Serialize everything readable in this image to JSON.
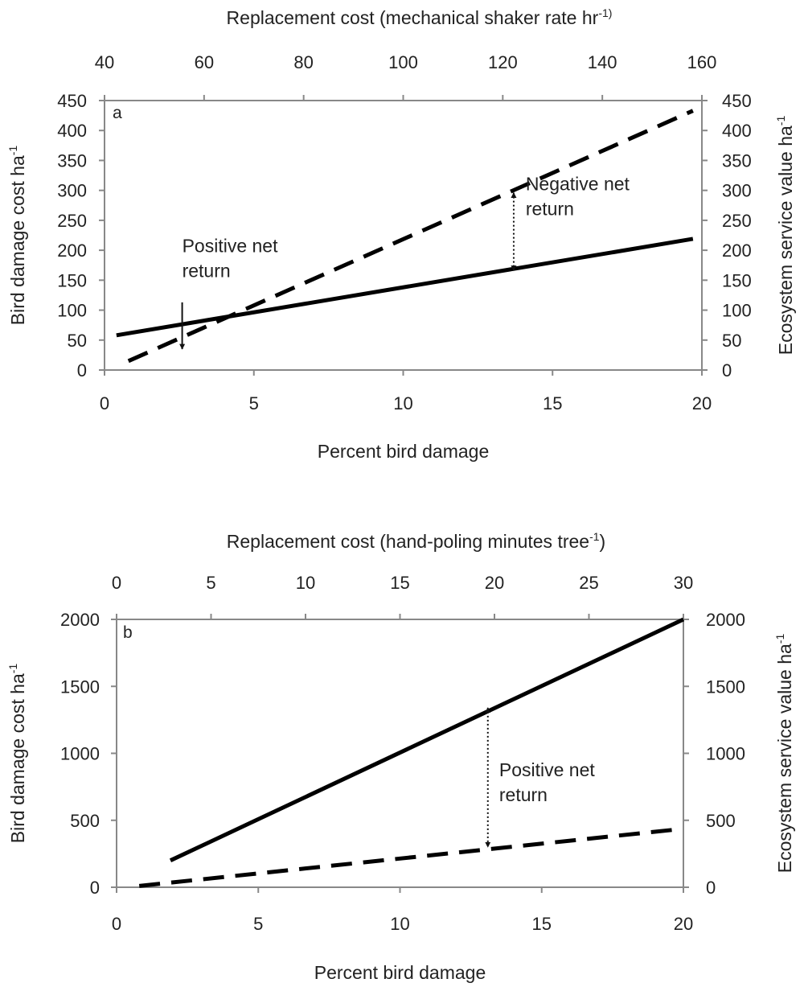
{
  "chart_data": [
    {
      "type": "line",
      "panel_label": "a",
      "xlabel": "Percent bird damage",
      "ylabel_left": "Bird damage cost ha",
      "ylabel_left_sup": "-1",
      "ylabel_right": "Ecosystem service value ha",
      "ylabel_right_sup": "-1",
      "xlabel_top": "Replacement cost (mechanical shaker rate hr",
      "xlabel_top_sup": "-1)",
      "xlim": [
        0,
        20
      ],
      "ylim": [
        0,
        450
      ],
      "x_ticks": [
        0,
        5,
        10,
        15,
        20
      ],
      "y_ticks": [
        0,
        50,
        100,
        150,
        200,
        250,
        300,
        350,
        400,
        450
      ],
      "top_lim": [
        40,
        160
      ],
      "top_ticks": [
        40,
        60,
        80,
        100,
        120,
        140,
        160
      ],
      "series": [
        {
          "style": "solid",
          "x": [
            0.4,
            19.7
          ],
          "y": [
            58,
            219
          ]
        },
        {
          "style": "dashed",
          "x": [
            0.8,
            19.7
          ],
          "y": [
            15,
            433
          ]
        }
      ],
      "annotations": [
        {
          "lines": [
            "Positive net",
            "return"
          ],
          "x": 2.6,
          "y": 197,
          "arrow": "single",
          "arrow_x": 2.6,
          "arrow_from": 113,
          "arrow_to": 35
        },
        {
          "lines": [
            "Negative net",
            "return"
          ],
          "x": 14.1,
          "y": 300,
          "arrow": "double",
          "arrow_x": 13.7,
          "arrow_from": 296,
          "arrow_to": 166
        }
      ]
    },
    {
      "type": "line",
      "panel_label": "b",
      "xlabel": "Percent bird damage",
      "ylabel_left": "Bird damage cost ha",
      "ylabel_left_sup": "-1",
      "ylabel_right": "Ecosystem service value ha",
      "ylabel_right_sup": "-1",
      "xlabel_top": "Replacement cost (hand-poling minutes tree",
      "xlabel_top_sup": "-1",
      "xlabel_top_suffix": ")",
      "xlim": [
        0,
        20
      ],
      "ylim": [
        0,
        2000
      ],
      "x_ticks": [
        0,
        5,
        10,
        15,
        20
      ],
      "y_ticks": [
        0,
        500,
        1000,
        1500,
        2000
      ],
      "top_lim": [
        0,
        30
      ],
      "top_ticks": [
        0,
        5,
        10,
        15,
        20,
        25,
        30
      ],
      "series": [
        {
          "style": "solid",
          "x": [
            1.9,
            20
          ],
          "y": [
            200,
            2000
          ]
        },
        {
          "style": "dashed",
          "x": [
            0.8,
            19.7
          ],
          "y": [
            10,
            430
          ]
        }
      ],
      "annotations": [
        {
          "lines": [
            "Positive net",
            "return"
          ],
          "x": 13.5,
          "y": 830,
          "arrow": "double",
          "arrow_x": 13.1,
          "arrow_from": 1340,
          "arrow_to": 300
        }
      ]
    }
  ]
}
